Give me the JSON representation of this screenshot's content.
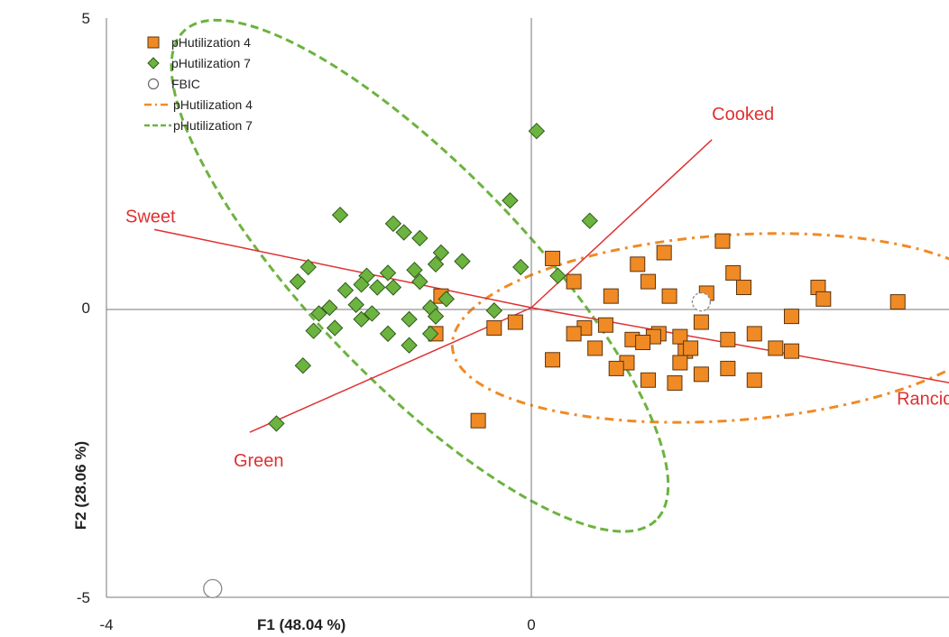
{
  "chart_data": {
    "type": "scatter",
    "title": "",
    "xlabel": "F1 (48.04 %)",
    "ylabel": "F2 (28.06 %)",
    "xlim": [
      -4,
      4
    ],
    "ylim": [
      -5,
      5
    ],
    "x_ticks": [
      -4,
      0
    ],
    "y_ticks": [
      -5,
      0,
      5
    ],
    "grid": false,
    "legend_position": "top-left",
    "legend": [
      {
        "label": "pHutilization 4",
        "marker": "square",
        "color": "#f08a24"
      },
      {
        "label": "pHutilization 7",
        "marker": "diamond",
        "color": "#6cb33f"
      },
      {
        "label": "FBIC",
        "marker": "circle",
        "color": "#ffffff"
      },
      {
        "label": "pHutilization 4",
        "marker": "dash-dot-line",
        "color": "#f08a24"
      },
      {
        "label": "pHutilization 7",
        "marker": "dashed-line",
        "color": "#6cb33f"
      }
    ],
    "series": [
      {
        "name": "pHutilization 4",
        "marker": "square",
        "color": "#f08a24",
        "points": [
          [
            0.2,
            0.85
          ],
          [
            0.4,
            0.45
          ],
          [
            1.1,
            0.45
          ],
          [
            0.75,
            0.2
          ],
          [
            0.5,
            -0.35
          ],
          [
            1.25,
            0.95
          ],
          [
            1.65,
            0.25
          ],
          [
            1.8,
            1.15
          ],
          [
            1.9,
            0.6
          ],
          [
            2.0,
            0.35
          ],
          [
            1.85,
            -0.55
          ],
          [
            1.45,
            -0.75
          ],
          [
            1.2,
            -0.45
          ],
          [
            0.95,
            -0.55
          ],
          [
            0.7,
            -0.3
          ],
          [
            0.4,
            -0.45
          ],
          [
            1.15,
            -0.5
          ],
          [
            1.4,
            -0.5
          ],
          [
            1.5,
            -0.7
          ],
          [
            1.6,
            -0.25
          ],
          [
            0.2,
            -0.9
          ],
          [
            0.6,
            -0.7
          ],
          [
            0.9,
            -0.95
          ],
          [
            0.8,
            -1.05
          ],
          [
            1.6,
            -1.15
          ],
          [
            1.35,
            -1.3
          ],
          [
            1.1,
            -1.25
          ],
          [
            1.85,
            -1.05
          ],
          [
            2.1,
            -1.25
          ],
          [
            2.45,
            -0.15
          ],
          [
            2.7,
            0.35
          ],
          [
            2.75,
            0.15
          ],
          [
            1.3,
            0.2
          ],
          [
            2.45,
            -0.75
          ],
          [
            -0.15,
            -0.25
          ],
          [
            -0.35,
            -0.35
          ],
          [
            3.45,
            0.1
          ],
          [
            2.1,
            -0.45
          ],
          [
            -0.5,
            -1.95
          ],
          [
            1.0,
            0.75
          ],
          [
            -0.85,
            0.2
          ],
          [
            1.4,
            -0.95
          ],
          [
            1.05,
            -0.6
          ],
          [
            2.3,
            -0.7
          ],
          [
            -0.9,
            -0.45
          ]
        ]
      },
      {
        "name": "pHutilization 7",
        "marker": "diamond",
        "color": "#6cb33f",
        "points": [
          [
            0.05,
            3.05
          ],
          [
            -0.2,
            1.85
          ],
          [
            0.55,
            1.5
          ],
          [
            -1.8,
            1.6
          ],
          [
            -1.3,
            1.45
          ],
          [
            -1.2,
            1.3
          ],
          [
            -1.05,
            1.2
          ],
          [
            -0.85,
            0.95
          ],
          [
            -0.65,
            0.8
          ],
          [
            -0.9,
            0.75
          ],
          [
            -1.1,
            0.65
          ],
          [
            -1.35,
            0.6
          ],
          [
            -1.55,
            0.55
          ],
          [
            -2.1,
            0.7
          ],
          [
            -2.2,
            0.45
          ],
          [
            -1.6,
            0.4
          ],
          [
            -1.45,
            0.35
          ],
          [
            -1.75,
            0.3
          ],
          [
            -1.3,
            0.35
          ],
          [
            -1.05,
            0.45
          ],
          [
            -0.8,
            0.15
          ],
          [
            -0.95,
            0.0
          ],
          [
            -1.65,
            0.05
          ],
          [
            -1.9,
            0.0
          ],
          [
            -2.0,
            -0.1
          ],
          [
            -1.6,
            -0.2
          ],
          [
            -1.85,
            -0.35
          ],
          [
            -1.15,
            -0.2
          ],
          [
            -1.35,
            -0.45
          ],
          [
            -0.9,
            -0.15
          ],
          [
            -2.05,
            -0.4
          ],
          [
            -2.15,
            -1.0
          ],
          [
            -2.4,
            -2.0
          ],
          [
            -0.1,
            0.7
          ],
          [
            0.25,
            0.55
          ],
          [
            -1.15,
            -0.65
          ],
          [
            -0.35,
            -0.05
          ],
          [
            -1.5,
            -0.1
          ],
          [
            -0.95,
            -0.45
          ]
        ]
      },
      {
        "name": "FBIC",
        "marker": "circle",
        "color": "#ffffff",
        "points": [
          [
            1.6,
            0.1
          ],
          [
            -3.0,
            -4.85
          ]
        ]
      }
    ],
    "ellipses": [
      {
        "name": "pHutilization 4",
        "style": "dash-dot",
        "color": "#f08a24",
        "center": [
          1.85,
          -0.35
        ],
        "radii": [
          2.6,
          1.6
        ],
        "rotation_deg": -4
      },
      {
        "name": "pHutilization 7",
        "style": "dashed",
        "color": "#6cb33f",
        "center": [
          -1.05,
          0.55
        ],
        "radii": [
          3.2,
          1.85
        ],
        "rotation_deg": 46
      }
    ],
    "vectors": [
      {
        "label": "Cooked",
        "start": [
          0,
          0
        ],
        "end": [
          1.7,
          2.9
        ]
      },
      {
        "label": "Sweet",
        "start": [
          0,
          0
        ],
        "end": [
          -3.55,
          1.35
        ]
      },
      {
        "label": "Rancid",
        "start": [
          0,
          0
        ],
        "end": [
          3.95,
          -1.3
        ]
      },
      {
        "label": "Green",
        "start": [
          0,
          0
        ],
        "end": [
          -2.65,
          -2.15
        ]
      }
    ]
  }
}
